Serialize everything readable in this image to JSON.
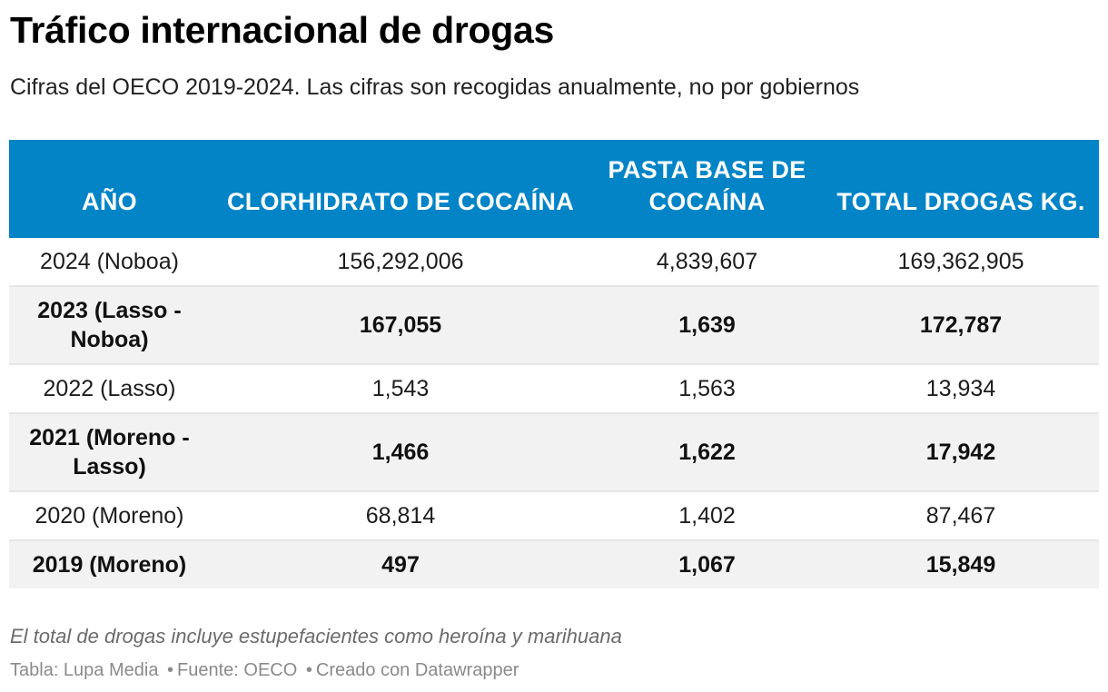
{
  "header": {
    "title": "Tráfico internacional de drogas",
    "subtitle": "Cifras del OECO 2019-2024. Las cifras son recogidas anualmente, no por gobiernos"
  },
  "chart_data": {
    "type": "table",
    "title": "Tráfico internacional de drogas",
    "subtitle": "Cifras del OECO 2019-2024. Las cifras son recogidas anualmente, no por gobiernos",
    "columns": [
      "AÑO",
      "CLORHIDRATO DE COCAÍNA",
      "PASTA BASE DE COCAÍNA",
      "TOTAL DROGAS KG."
    ],
    "rows": [
      [
        "2024 (Noboa)",
        "156,292,006",
        "4,839,607",
        "169,362,905"
      ],
      [
        "2023 (Lasso - Noboa)",
        "167,055",
        "1,639",
        "172,787"
      ],
      [
        "2022 (Lasso)",
        "1,543",
        "1,563",
        "13,934"
      ],
      [
        "2021 (Moreno - Lasso)",
        "1,466",
        "1,622",
        "17,942"
      ],
      [
        "2020 (Moreno)",
        "68,814",
        "1,402",
        "87,467"
      ],
      [
        "2019 (Moreno)",
        "497",
        "1,067",
        "15,849"
      ]
    ],
    "header_color": "#0284c7",
    "stripe_color": "#f2f2f2"
  },
  "footer": {
    "notes": "El total de drogas incluye estupefacientes como heroína y marihuana",
    "credit_table": "Tabla: Lupa Media",
    "credit_source": "Fuente: OECO",
    "credit_tool": "Creado con Datawrapper",
    "separator": "•"
  }
}
